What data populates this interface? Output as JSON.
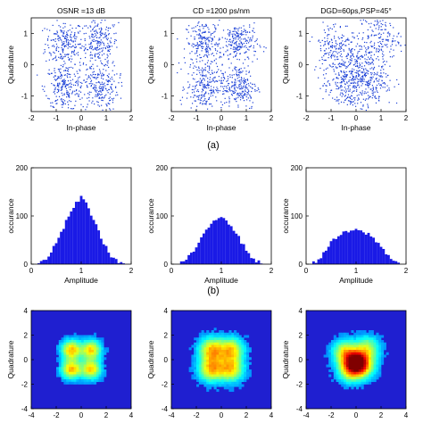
{
  "chart_data": [
    {
      "type": "scatter",
      "panel": "a1",
      "title": "OSNR =13 dB",
      "xlabel": "In-phase",
      "ylabel": "Quadrature",
      "xlim": [
        -2,
        2
      ],
      "ylim": [
        -1.5,
        1.5
      ],
      "xticks": [
        "-2",
        "-1",
        "0",
        "1",
        "2"
      ],
      "yticks": [
        "1",
        "0",
        "-1"
      ],
      "clusters": [
        [
          -0.7,
          0.7
        ],
        [
          0.7,
          0.7
        ],
        [
          -0.7,
          -0.7
        ],
        [
          0.7,
          -0.7
        ]
      ],
      "spread": 0.38,
      "point_count": 900,
      "color": "#1a3fd6"
    },
    {
      "type": "scatter",
      "panel": "a2",
      "title": "CD =1200 ps/nm",
      "xlabel": "In-phase",
      "ylabel": "Quadrature",
      "xlim": [
        -2,
        2
      ],
      "ylim": [
        -1.5,
        1.5
      ],
      "xticks": [
        "-2",
        "-1",
        "0",
        "1",
        "2"
      ],
      "yticks": [
        "1",
        "0",
        "-1"
      ],
      "clusters": [
        [
          -0.7,
          0.7
        ],
        [
          0.7,
          0.7
        ],
        [
          -0.7,
          -0.7
        ],
        [
          0.7,
          -0.7
        ]
      ],
      "spread": 0.36,
      "point_count": 900,
      "color": "#1a3fd6"
    },
    {
      "type": "scatter",
      "panel": "a3",
      "title": "DGD=60ps,PSP=45°",
      "xlabel": "In-phase",
      "ylabel": "Quadrature",
      "xlim": [
        -2,
        2
      ],
      "ylim": [
        -1.5,
        1.5
      ],
      "xticks": [
        "-2",
        "-1",
        "0",
        "1",
        "2"
      ],
      "yticks": [
        "1",
        "0",
        "-1"
      ],
      "clusters": [
        [
          -0.9,
          0.6
        ],
        [
          0.9,
          0.9
        ],
        [
          -0.5,
          -0.7
        ],
        [
          0.6,
          -0.5
        ],
        [
          0.0,
          0.0
        ]
      ],
      "spread": 0.42,
      "point_count": 900,
      "color": "#1a3fd6"
    },
    {
      "type": "bar",
      "panel": "b1",
      "xlabel": "Amplitude",
      "ylabel": "occurance",
      "xlim": [
        0,
        2
      ],
      "ylim": [
        0,
        200
      ],
      "xticks": [
        "0",
        "1",
        "2"
      ],
      "yticks": [
        "200",
        "100",
        "0"
      ],
      "bins": [
        0.15,
        0.2,
        0.25,
        0.3,
        0.35,
        0.4,
        0.45,
        0.5,
        0.55,
        0.6,
        0.65,
        0.7,
        0.75,
        0.8,
        0.85,
        0.9,
        0.95,
        1.0,
        1.05,
        1.1,
        1.15,
        1.2,
        1.25,
        1.3,
        1.35,
        1.4,
        1.45,
        1.5,
        1.55,
        1.6,
        1.65,
        1.7,
        1.75,
        1.8,
        1.85
      ],
      "values": [
        2,
        4,
        8,
        12,
        18,
        26,
        34,
        44,
        54,
        64,
        76,
        88,
        100,
        110,
        118,
        126,
        132,
        138,
        134,
        126,
        116,
        104,
        92,
        80,
        68,
        56,
        44,
        34,
        26,
        18,
        12,
        8,
        5,
        3,
        1
      ],
      "color": "#1a1ae6"
    },
    {
      "type": "bar",
      "panel": "b2",
      "xlabel": "Amplitude",
      "ylabel": "occurance",
      "xlim": [
        0,
        2
      ],
      "ylim": [
        0,
        200
      ],
      "xticks": [
        "0",
        "1",
        "2"
      ],
      "yticks": [
        "200",
        "100",
        "0"
      ],
      "bins": [
        0.15,
        0.2,
        0.25,
        0.3,
        0.35,
        0.4,
        0.45,
        0.5,
        0.55,
        0.6,
        0.65,
        0.7,
        0.75,
        0.8,
        0.85,
        0.9,
        0.95,
        1.0,
        1.05,
        1.1,
        1.15,
        1.2,
        1.25,
        1.3,
        1.35,
        1.4,
        1.45,
        1.5,
        1.55,
        1.6,
        1.65,
        1.7,
        1.75,
        1.8,
        1.85
      ],
      "values": [
        1,
        3,
        6,
        10,
        15,
        21,
        28,
        36,
        44,
        52,
        60,
        68,
        76,
        84,
        90,
        94,
        98,
        100,
        97,
        92,
        86,
        80,
        72,
        64,
        55,
        46,
        38,
        30,
        22,
        16,
        11,
        7,
        4,
        2,
        1
      ],
      "color": "#1a1ae6"
    },
    {
      "type": "bar",
      "panel": "b3",
      "xlabel": "Amplitude",
      "ylabel": "occurance",
      "xlim": [
        0,
        2
      ],
      "ylim": [
        0,
        200
      ],
      "xticks": [
        "0",
        "1",
        "2"
      ],
      "yticks": [
        "200",
        "100",
        "0"
      ],
      "bins": [
        0.15,
        0.2,
        0.25,
        0.3,
        0.35,
        0.4,
        0.45,
        0.5,
        0.55,
        0.6,
        0.65,
        0.7,
        0.75,
        0.8,
        0.85,
        0.9,
        0.95,
        1.0,
        1.05,
        1.1,
        1.15,
        1.2,
        1.25,
        1.3,
        1.35,
        1.4,
        1.45,
        1.5,
        1.55,
        1.6,
        1.65,
        1.7,
        1.75,
        1.8,
        1.85
      ],
      "values": [
        3,
        6,
        10,
        16,
        22,
        30,
        38,
        44,
        50,
        54,
        58,
        62,
        64,
        66,
        68,
        69,
        70,
        70,
        69,
        68,
        66,
        64,
        62,
        58,
        54,
        48,
        42,
        36,
        30,
        24,
        18,
        13,
        9,
        5,
        3
      ],
      "color": "#1a1ae6"
    },
    {
      "type": "heatmap",
      "panel": "c1",
      "ylabel": "Quadrature",
      "xlim": [
        -4,
        4
      ],
      "ylim": [
        -4,
        4
      ],
      "xticks": [
        "-4",
        "-2",
        "0",
        "2",
        "4"
      ],
      "yticks": [
        "4",
        "2",
        "0",
        "-2",
        "-4"
      ],
      "spots": [
        [
          -0.8,
          0.8,
          0.55,
          0.85
        ],
        [
          0.8,
          0.8,
          0.55,
          0.8
        ],
        [
          -0.8,
          -0.8,
          0.55,
          0.85
        ],
        [
          0.8,
          -0.8,
          0.55,
          0.8
        ]
      ],
      "background": "#1f1fd0"
    },
    {
      "type": "heatmap",
      "panel": "c2",
      "ylabel": "Quadrature",
      "xlim": [
        -4,
        4
      ],
      "ylim": [
        -4,
        4
      ],
      "xticks": [
        "-4",
        "-2",
        "0",
        "2",
        "4"
      ],
      "yticks": [
        "4",
        "2",
        "0",
        "-2",
        "-4"
      ],
      "spots": [
        [
          -0.8,
          0.8,
          0.7,
          0.8
        ],
        [
          0.8,
          0.8,
          0.7,
          0.75
        ],
        [
          -0.8,
          -0.8,
          0.7,
          0.8
        ],
        [
          0.8,
          -0.8,
          0.7,
          0.75
        ]
      ],
      "background": "#1f1fd0"
    },
    {
      "type": "heatmap",
      "panel": "c3",
      "ylabel": "Quadrature",
      "xlim": [
        -4,
        4
      ],
      "ylim": [
        -4,
        4
      ],
      "xticks": [
        "-4",
        "-2",
        "0",
        "2",
        "4"
      ],
      "yticks": [
        "4",
        "2",
        "0",
        "-2",
        "-4"
      ],
      "spots": [
        [
          0.0,
          -0.2,
          0.6,
          1.0
        ],
        [
          -0.9,
          0.6,
          0.7,
          0.7
        ],
        [
          0.9,
          0.9,
          0.7,
          0.6
        ],
        [
          -0.5,
          -0.9,
          0.7,
          0.65
        ],
        [
          0.6,
          -0.6,
          0.7,
          0.6
        ]
      ],
      "background": "#1f1fd0"
    }
  ],
  "captions": {
    "a": "(a)",
    "b": "(b)"
  }
}
